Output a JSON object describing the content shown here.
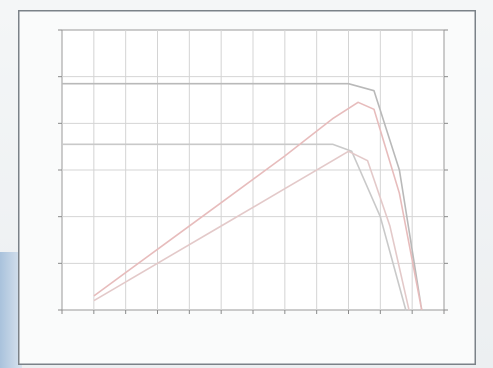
{
  "chart_data": {
    "type": "line",
    "title": "",
    "xlabel": "",
    "ylabel_left": "",
    "ylabel_right": "",
    "x_ticks": [],
    "y_left_ticks": [],
    "y_right_ticks": [],
    "xlim": [
      0,
      12
    ],
    "ylim_left": [
      0,
      6
    ],
    "ylim_right": [
      0,
      6
    ],
    "grid": true,
    "legend": {
      "position": "bottom-center",
      "entries": []
    },
    "series": [
      {
        "axis": "left",
        "color": "#b9b9b9",
        "x": [
          0,
          1.2,
          9.0,
          9.8,
          10.6,
          11.3
        ],
        "y": [
          4.85,
          4.85,
          4.85,
          4.7,
          3.0,
          0.0
        ]
      },
      {
        "axis": "left",
        "color": "#c9c9c9",
        "x": [
          0,
          1.2,
          8.5,
          9.1,
          10.0,
          10.8
        ],
        "y": [
          3.55,
          3.55,
          3.55,
          3.4,
          2.0,
          0.0
        ]
      },
      {
        "axis": "right",
        "color": "#e7bcbc",
        "x": [
          1.0,
          3.0,
          5.0,
          7.0,
          8.5,
          9.3,
          9.8,
          10.6,
          11.3
        ],
        "y": [
          0.3,
          1.3,
          2.3,
          3.3,
          4.1,
          4.45,
          4.3,
          2.5,
          0.0
        ]
      },
      {
        "axis": "right",
        "color": "#e3c9c9",
        "x": [
          1.0,
          3.0,
          5.0,
          7.0,
          8.5,
          9.0,
          9.6,
          10.3,
          10.9
        ],
        "y": [
          0.2,
          1.0,
          1.8,
          2.6,
          3.2,
          3.4,
          3.2,
          1.8,
          0.0
        ]
      }
    ]
  }
}
